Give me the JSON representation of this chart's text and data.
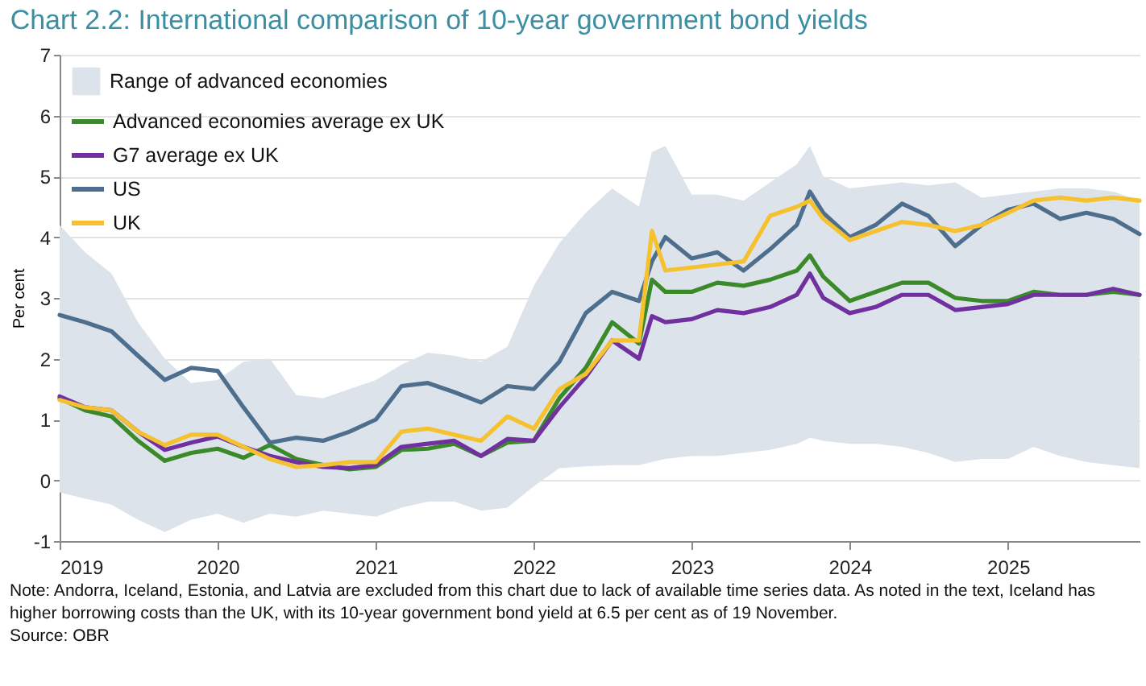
{
  "chart_data": {
    "type": "line",
    "title": "Chart 2.2: International comparison of 10-year government bond yields",
    "ylabel": "Per cent",
    "x": [
      "2019-01",
      "2019-03",
      "2019-05",
      "2019-07",
      "2019-09",
      "2019-11",
      "2020-01",
      "2020-03",
      "2020-05",
      "2020-07",
      "2020-09",
      "2020-11",
      "2021-01",
      "2021-03",
      "2021-05",
      "2021-07",
      "2021-09",
      "2021-11",
      "2022-01",
      "2022-03",
      "2022-05",
      "2022-07",
      "2022-09",
      "2022-10",
      "2022-11",
      "2023-01",
      "2023-03",
      "2023-05",
      "2023-07",
      "2023-09",
      "2023-10",
      "2023-11",
      "2024-01",
      "2024-03",
      "2024-05",
      "2024-07",
      "2024-09",
      "2024-11",
      "2025-01",
      "2025-03",
      "2025-05",
      "2025-07",
      "2025-09",
      "2025-11"
    ],
    "series": [
      {
        "name": "Range of advanced economies",
        "type": "area",
        "color": "#dde3ea",
        "values": [
          null,
          null,
          null,
          null,
          null,
          null,
          null,
          null,
          null,
          null,
          null,
          null,
          null,
          null,
          null,
          null,
          null,
          null,
          null,
          null,
          null,
          null,
          null,
          null,
          null,
          null,
          null,
          null,
          null,
          null,
          null,
          null,
          null,
          null,
          null,
          null,
          null,
          null,
          null,
          null,
          null,
          null,
          null,
          null
        ],
        "lower": [
          -0.2,
          -0.3,
          -0.4,
          -0.65,
          -0.85,
          -0.65,
          -0.55,
          -0.7,
          -0.55,
          -0.6,
          -0.5,
          -0.55,
          -0.6,
          -0.45,
          -0.35,
          -0.35,
          -0.5,
          -0.45,
          -0.1,
          0.2,
          0.23,
          0.25,
          0.25,
          0.3,
          0.35,
          0.4,
          0.4,
          0.45,
          0.5,
          0.6,
          0.7,
          0.65,
          0.6,
          0.6,
          0.55,
          0.45,
          0.3,
          0.35,
          0.35,
          0.55,
          0.4,
          0.3,
          0.25,
          0.2
        ],
        "upper": [
          4.2,
          3.75,
          3.4,
          2.6,
          2.0,
          1.6,
          1.65,
          1.95,
          2.0,
          1.4,
          1.35,
          1.5,
          1.65,
          1.9,
          2.1,
          2.05,
          1.95,
          2.2,
          3.2,
          3.9,
          4.4,
          4.8,
          4.5,
          5.4,
          5.5,
          4.7,
          4.7,
          4.6,
          4.9,
          5.2,
          5.5,
          5.0,
          4.8,
          4.85,
          4.9,
          4.85,
          4.9,
          4.65,
          4.7,
          4.75,
          4.8,
          4.8,
          4.75,
          4.6
        ]
      },
      {
        "name": "Advanced economies average ex UK",
        "color": "#3a8a2a",
        "values": [
          1.35,
          1.15,
          1.05,
          0.65,
          0.32,
          0.45,
          0.52,
          0.37,
          0.58,
          0.35,
          0.25,
          0.18,
          0.22,
          0.5,
          0.52,
          0.6,
          0.4,
          0.62,
          0.65,
          1.35,
          1.85,
          2.6,
          2.25,
          3.3,
          3.1,
          3.1,
          3.25,
          3.2,
          3.3,
          3.45,
          3.7,
          3.35,
          2.95,
          3.1,
          3.25,
          3.25,
          3.0,
          2.95,
          2.95,
          3.1,
          3.05,
          3.05,
          3.1,
          3.05
        ]
      },
      {
        "name": "G7 average ex UK",
        "color": "#7030a0",
        "values": [
          1.38,
          1.2,
          1.15,
          0.8,
          0.5,
          0.62,
          0.72,
          0.55,
          0.4,
          0.3,
          0.22,
          0.2,
          0.25,
          0.55,
          0.6,
          0.65,
          0.4,
          0.68,
          0.65,
          1.2,
          1.7,
          2.3,
          2.0,
          2.7,
          2.6,
          2.65,
          2.8,
          2.75,
          2.85,
          3.05,
          3.4,
          3.0,
          2.75,
          2.85,
          3.05,
          3.05,
          2.8,
          2.85,
          2.9,
          3.05,
          3.05,
          3.05,
          3.15,
          3.05
        ]
      },
      {
        "name": "US",
        "color": "#4e6e8e",
        "values": [
          2.72,
          2.6,
          2.45,
          2.05,
          1.65,
          1.85,
          1.8,
          1.2,
          0.62,
          0.7,
          0.65,
          0.8,
          1.0,
          1.55,
          1.6,
          1.45,
          1.28,
          1.55,
          1.5,
          1.95,
          2.75,
          3.1,
          2.95,
          3.6,
          4.0,
          3.65,
          3.75,
          3.45,
          3.8,
          4.2,
          4.75,
          4.4,
          4.0,
          4.2,
          4.55,
          4.35,
          3.85,
          4.2,
          4.45,
          4.55,
          4.3,
          4.4,
          4.3,
          4.05
        ]
      },
      {
        "name": "UK",
        "color": "#f5c12e",
        "values": [
          1.32,
          1.2,
          1.15,
          0.8,
          0.58,
          0.75,
          0.75,
          0.55,
          0.35,
          0.22,
          0.25,
          0.3,
          0.3,
          0.8,
          0.85,
          0.75,
          0.65,
          1.05,
          0.85,
          1.5,
          1.75,
          2.3,
          2.3,
          4.1,
          3.45,
          3.5,
          3.55,
          3.6,
          4.35,
          4.5,
          4.6,
          4.3,
          3.95,
          4.1,
          4.25,
          4.2,
          4.1,
          4.2,
          4.4,
          4.6,
          4.65,
          4.6,
          4.65,
          4.6
        ]
      }
    ],
    "xlim": [
      "2019-01",
      "2025-11"
    ],
    "xticks": [
      "2019",
      "2020",
      "2021",
      "2022",
      "2023",
      "2024",
      "2025"
    ],
    "ylim": [
      -1,
      7
    ],
    "yticks": [
      -1,
      0,
      1,
      2,
      3,
      4,
      5,
      6,
      7
    ],
    "grid": "y",
    "legend": "top left",
    "annotations": [
      "Note: Andorra, Iceland, Estonia, and Latvia are excluded from this chart due to lack of available time series data. As noted in the text, Iceland has higher borrowing costs than the UK, with its 10-year government bond yield at 6.5 per cent as of 19 November.",
      "Source: OBR"
    ]
  }
}
